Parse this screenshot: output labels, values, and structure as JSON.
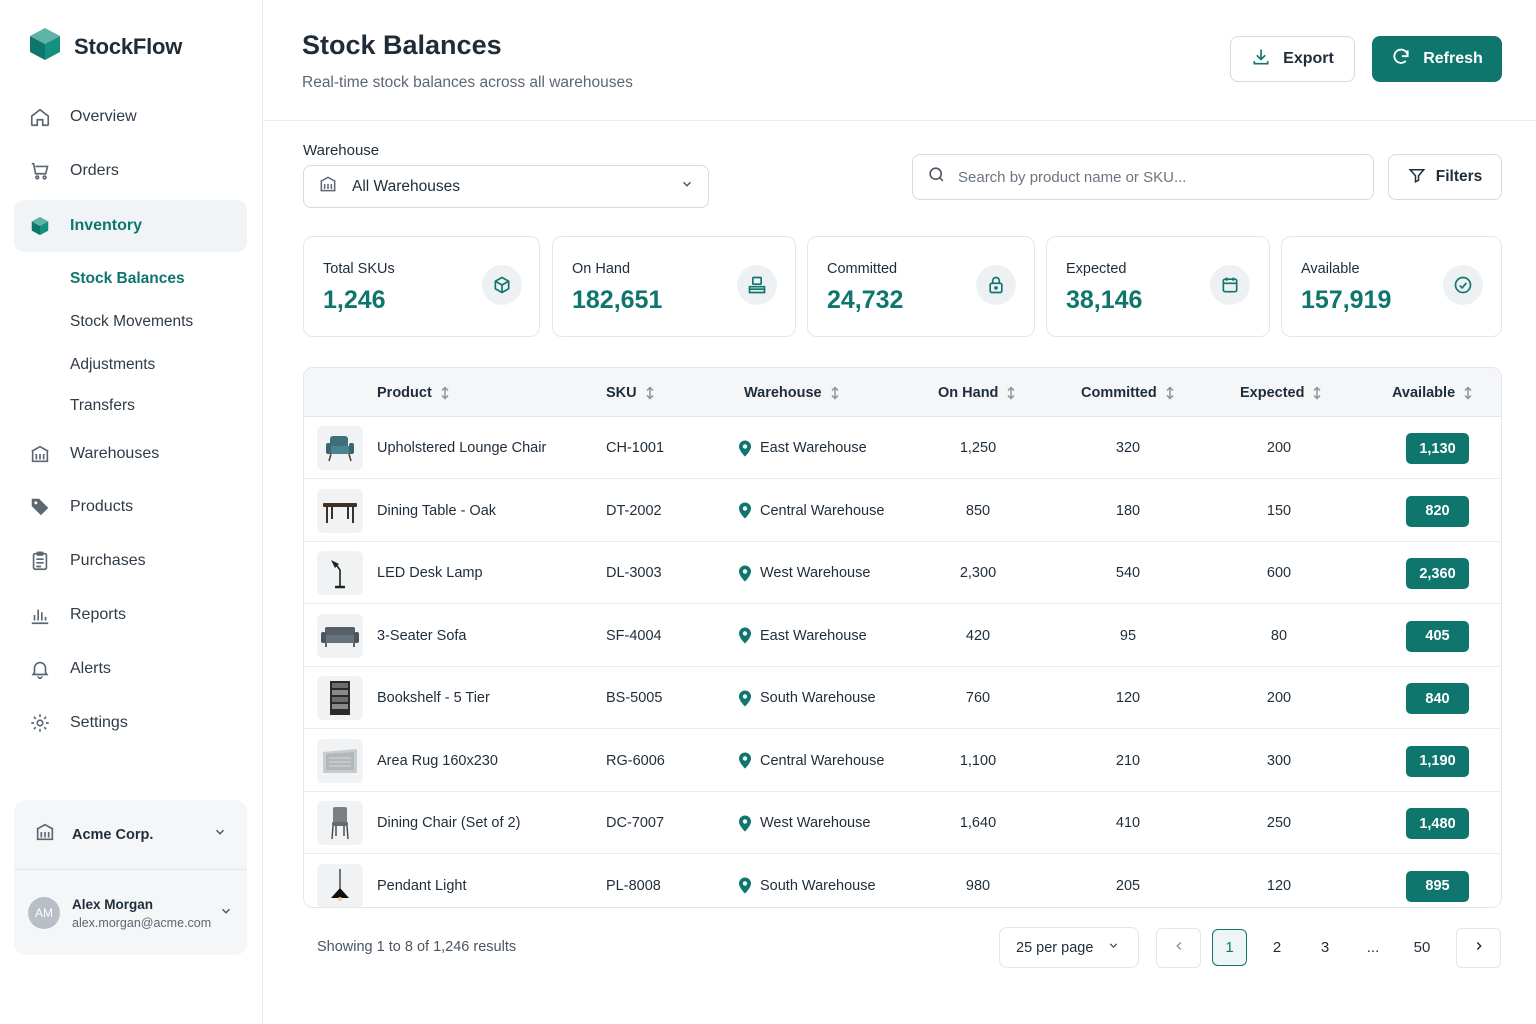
{
  "brand": {
    "name": "StockFlow"
  },
  "nav": {
    "items": [
      {
        "label": "Overview",
        "icon": "home-icon"
      },
      {
        "label": "Orders",
        "icon": "cart-icon"
      },
      {
        "label": "Inventory",
        "icon": "box-icon",
        "active": true
      },
      {
        "label": "Warehouses",
        "icon": "building-icon"
      },
      {
        "label": "Products",
        "icon": "tag-icon"
      },
      {
        "label": "Purchases",
        "icon": "clipboard-icon"
      },
      {
        "label": "Reports",
        "icon": "bar-chart-icon"
      },
      {
        "label": "Alerts",
        "icon": "bell-icon"
      },
      {
        "label": "Settings",
        "icon": "gear-icon"
      }
    ],
    "sub_items": [
      {
        "label": "Stock Balances",
        "active": true
      },
      {
        "label": "Stock Movements"
      },
      {
        "label": "Adjustments"
      },
      {
        "label": "Transfers"
      }
    ]
  },
  "org": {
    "name": "Acme Corp."
  },
  "user": {
    "initials": "AM",
    "name": "Alex Morgan",
    "email": "alex.morgan@acme.com"
  },
  "header": {
    "title": "Stock Balances",
    "subtitle": "Real-time stock balances across all warehouses",
    "export_label": "Export",
    "refresh_label": "Refresh"
  },
  "filters": {
    "warehouse_label": "Warehouse",
    "warehouse_value": "All Warehouses",
    "search_placeholder": "Search by product name or SKU...",
    "filters_label": "Filters"
  },
  "stats": [
    {
      "label": "Total SKUs",
      "value": "1,246",
      "icon": "cube-icon"
    },
    {
      "label": "On Hand",
      "value": "182,651",
      "icon": "stack-icon"
    },
    {
      "label": "Committed",
      "value": "24,732",
      "icon": "lock-icon"
    },
    {
      "label": "Expected",
      "value": "38,146",
      "icon": "calendar-icon"
    },
    {
      "label": "Available",
      "value": "157,919",
      "icon": "check-circle-icon"
    }
  ],
  "table": {
    "columns": [
      "Product",
      "SKU",
      "Warehouse",
      "On Hand",
      "Committed",
      "Expected",
      "Available"
    ],
    "rows": [
      {
        "product": "Upholstered Lounge Chair",
        "sku": "CH-1001",
        "warehouse": "East Warehouse",
        "on_hand": "1,250",
        "committed": "320",
        "expected": "200",
        "available": "1,130",
        "thumb": "lounge-chair"
      },
      {
        "product": "Dining Table - Oak",
        "sku": "DT-2002",
        "warehouse": "Central Warehouse",
        "on_hand": "850",
        "committed": "180",
        "expected": "150",
        "available": "820",
        "thumb": "table"
      },
      {
        "product": "LED Desk Lamp",
        "sku": "DL-3003",
        "warehouse": "West Warehouse",
        "on_hand": "2,300",
        "committed": "540",
        "expected": "600",
        "available": "2,360",
        "thumb": "lamp"
      },
      {
        "product": "3-Seater Sofa",
        "sku": "SF-4004",
        "warehouse": "East Warehouse",
        "on_hand": "420",
        "committed": "95",
        "expected": "80",
        "available": "405",
        "thumb": "sofa"
      },
      {
        "product": "Bookshelf - 5 Tier",
        "sku": "BS-5005",
        "warehouse": "South Warehouse",
        "on_hand": "760",
        "committed": "120",
        "expected": "200",
        "available": "840",
        "thumb": "bookshelf"
      },
      {
        "product": "Area Rug 160x230",
        "sku": "RG-6006",
        "warehouse": "Central Warehouse",
        "on_hand": "1,100",
        "committed": "210",
        "expected": "300",
        "available": "1,190",
        "thumb": "rug"
      },
      {
        "product": "Dining Chair (Set of 2)",
        "sku": "DC-7007",
        "warehouse": "West Warehouse",
        "on_hand": "1,640",
        "committed": "410",
        "expected": "250",
        "available": "1,480",
        "thumb": "chair"
      },
      {
        "product": "Pendant Light",
        "sku": "PL-8008",
        "warehouse": "South Warehouse",
        "on_hand": "980",
        "committed": "205",
        "expected": "120",
        "available": "895",
        "thumb": "pendant"
      }
    ]
  },
  "footer": {
    "showing": "Showing 1 to 8 of 1,246 results",
    "per_page": "25 per page",
    "pages": [
      "1",
      "2",
      "3",
      "...",
      "50"
    ],
    "current_page": "1"
  },
  "colors": {
    "accent": "#0f766e",
    "border": "#e3e7eb",
    "header_bg": "#f4f6f8"
  }
}
